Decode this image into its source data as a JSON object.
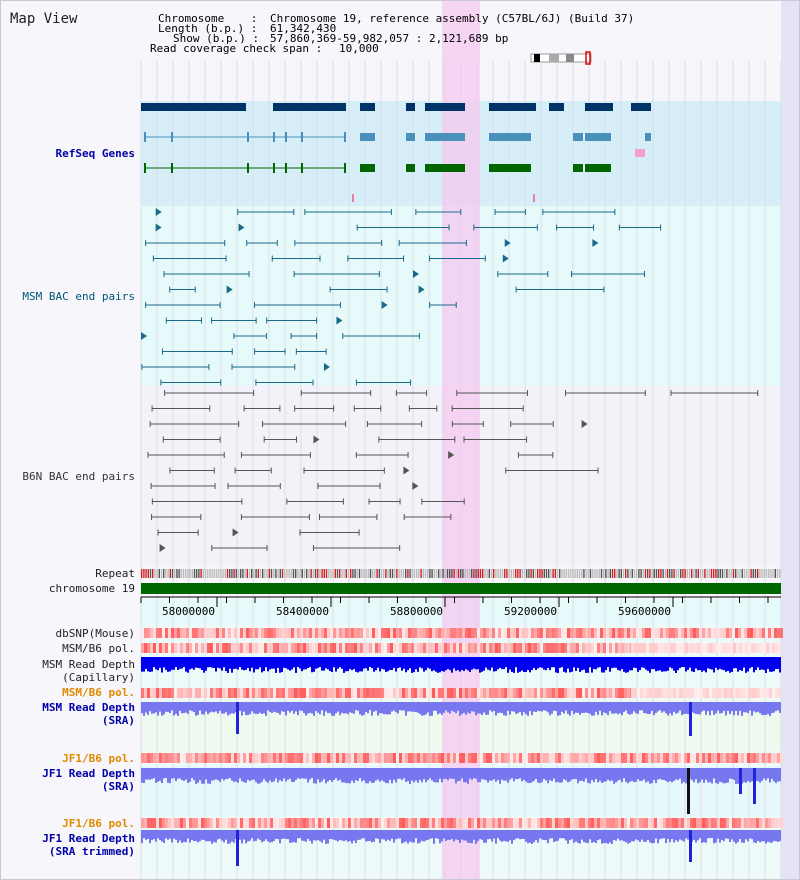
{
  "title": "Map View",
  "header": {
    "chromosome_label": "Chromosome    :",
    "chromosome_value": "Chromosome 19, reference assembly (C57BL/6J) (Build 37)",
    "length_label": "Length (b.p.) :",
    "length_value": "61,342,430",
    "show_label": "Show (b.p.) :",
    "show_value": "57,860,369-59,982,057 : 2,121,689 bp",
    "coverage_label": "Read coverage check span :",
    "coverage_value": "10,000"
  },
  "tracks": {
    "refseq": "RefSeq Genes",
    "msm_bac": "MSM BAC end pairs",
    "b6n_bac": "B6N BAC end pairs",
    "repeat": "Repeat",
    "chromosome": "chromosome 19",
    "dbsnp": "dbSNP(Mouse)",
    "msm_pol1": "MSM/B6 pol.",
    "msm_depth_cap_1": "MSM Read Depth",
    "msm_depth_cap_2": "(Capillary)",
    "msm_pol2": "MSM/B6 pol.",
    "msm_depth_sra_1": "MSM Read Depth",
    "msm_depth_sra_2": "(SRA)",
    "jf1_pol1": "JF1/B6 pol.",
    "jf1_depth_sra_1": "JF1 Read Depth",
    "jf1_depth_sra_2": "(SRA)",
    "jf1_pol2": "JF1/B6 pol.",
    "jf1_depth_trim_1": "JF1 Read Depth",
    "jf1_depth_trim_2": "(SRA trimmed)"
  },
  "axis": {
    "ticks": [
      "58000000",
      "58400000",
      "58800000",
      "59200000",
      "59600000"
    ]
  },
  "colors": {
    "refseq_bg": "#d6eef8",
    "bac_bg": "#e6fafa",
    "highlight": "#f6c8f0",
    "gene_dark": "#003366",
    "gene_mid": "#4a90b8",
    "gene_green": "#006600",
    "chromosome": "#006600",
    "depth_blue": "#0000ee",
    "depth_light": "#7777f0"
  }
}
